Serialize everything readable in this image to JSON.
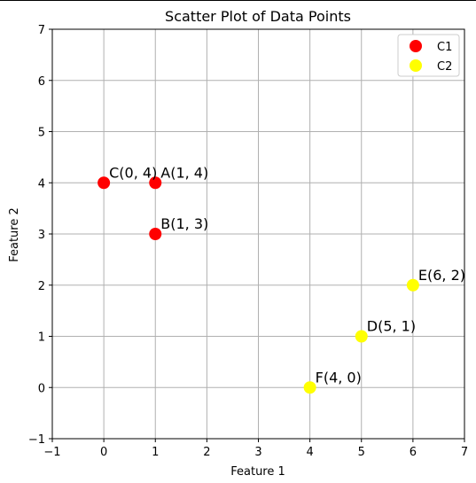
{
  "chart_data": {
    "type": "scatter",
    "title": "Scatter Plot of Data Points",
    "xlabel": "Feature 1",
    "ylabel": "Feature 2",
    "xlim": [
      -1,
      7
    ],
    "ylim": [
      -1,
      7
    ],
    "xticks": [
      -1,
      0,
      1,
      2,
      3,
      4,
      5,
      6,
      7
    ],
    "yticks": [
      -1,
      0,
      1,
      2,
      3,
      4,
      5,
      6,
      7
    ],
    "grid": true,
    "legend_position": "top-right",
    "series": [
      {
        "name": "C1",
        "color": "#ff0000",
        "points": [
          {
            "label": "A(1, 4)",
            "x": 1,
            "y": 4
          },
          {
            "label": "B(1, 3)",
            "x": 1,
            "y": 3
          },
          {
            "label": "C(0, 4)",
            "x": 0,
            "y": 4
          }
        ]
      },
      {
        "name": "C2",
        "color": "#ffff00",
        "points": [
          {
            "label": "D(5, 1)",
            "x": 5,
            "y": 1
          },
          {
            "label": "E(6, 2)",
            "x": 6,
            "y": 2
          },
          {
            "label": "F(4, 0)",
            "x": 4,
            "y": 0
          }
        ]
      }
    ]
  }
}
